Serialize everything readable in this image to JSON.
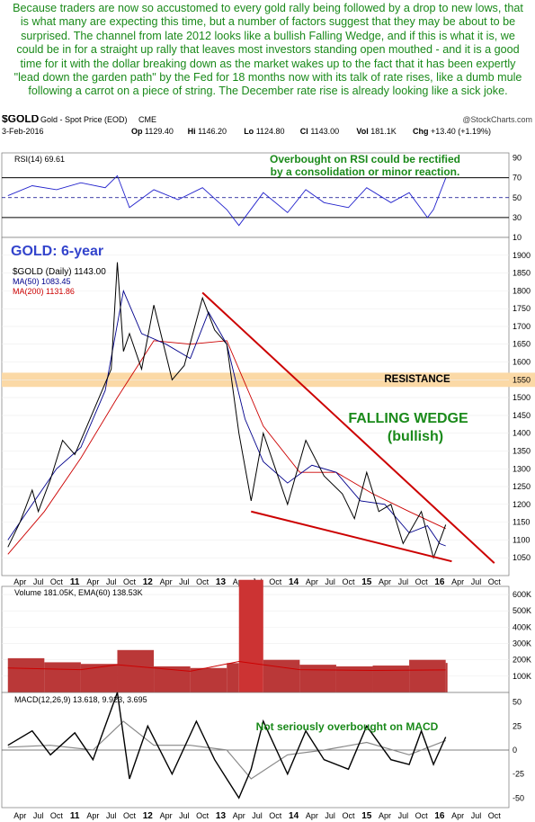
{
  "intro_text": "Because traders are now so accustomed to every gold rally being followed by a drop to new lows, that is what many are expecting this time, but a number of factors suggest that they may be about to be surprised. The channel from late 2012 looks like a bullish Falling Wedge, and if this is what it is, we could be in for a straight up rally that leaves most investors standing open mouthed - and it is a good time for it with the dollar breaking down as the market wakes up to the fact that it has been expertly \"lead down the garden path\" by the Fed for 18 months now with its talk of rate rises, like a dumb mule following a carrot on a piece of string. The December rate rise is already looking like a sick joke.",
  "header": {
    "symbol": "$GOLD",
    "name": "Gold - Spot Price (EOD)",
    "exchange": "CME",
    "watermark": "@StockCharts.com",
    "date": "3-Feb-2016",
    "quote": [
      {
        "k": "Op",
        "v": "1129.40"
      },
      {
        "k": "Hi",
        "v": "1146.20"
      },
      {
        "k": "Lo",
        "v": "1124.80"
      },
      {
        "k": "Cl",
        "v": "1143.00"
      },
      {
        "k": "Vol",
        "v": "181.1K"
      },
      {
        "k": "Chg",
        "v": "+13.40 (+1.19%)"
      }
    ]
  },
  "colors": {
    "green": "#1a8a1a",
    "navy": "#00008b",
    "red": "#cc0000",
    "price": "#000000",
    "rsi": "#2222cc",
    "resistance": "#fbd9a6",
    "volume": "#b22222",
    "ema": "#cc0000"
  },
  "chart_data": [
    {
      "type": "line",
      "title": "RSI(14) 69.61",
      "ylim": [
        10,
        95
      ],
      "y_ticks": [
        90,
        70,
        50,
        30,
        10
      ],
      "levels": [
        70,
        50,
        30
      ],
      "last_value": 69.61,
      "annotation": "Overbought on RSI could be rectified by a consolidation or minor reaction.",
      "series": [
        {
          "name": "RSI(14)",
          "x": [
            "2010-02",
            "2010-06",
            "2010-10",
            "2011-02",
            "2011-06",
            "2011-08",
            "2011-10",
            "2012-02",
            "2012-06",
            "2012-10",
            "2013-02",
            "2013-04",
            "2013-08",
            "2013-12",
            "2014-03",
            "2014-06",
            "2014-10",
            "2015-01",
            "2015-05",
            "2015-08",
            "2015-11",
            "2015-12",
            "2016-02"
          ],
          "values": [
            52,
            62,
            58,
            65,
            60,
            72,
            40,
            58,
            48,
            60,
            38,
            22,
            55,
            35,
            58,
            45,
            40,
            60,
            45,
            55,
            30,
            38,
            69.61
          ]
        }
      ]
    },
    {
      "type": "line",
      "title": "GOLD: 6-year",
      "legend": [
        "$GOLD (Daily) 1143.00",
        "MA(50) 1083.45",
        "MA(200) 1131.86"
      ],
      "ylim": [
        1000,
        1950
      ],
      "y_ticks": [
        1900,
        1850,
        1800,
        1750,
        1700,
        1650,
        1600,
        1550,
        1500,
        1450,
        1400,
        1350,
        1300,
        1250,
        1200,
        1150,
        1100,
        1050
      ],
      "x_tick_labels": [
        "Apr",
        "Jul",
        "Oct",
        "11",
        "Apr",
        "Jul",
        "Oct",
        "12",
        "Apr",
        "Jul",
        "Oct",
        "13",
        "Apr",
        "Jul",
        "Oct",
        "14",
        "Apr",
        "Jul",
        "Oct",
        "15",
        "Apr",
        "Jul",
        "Oct",
        "16",
        "Apr",
        "Jul",
        "Oct"
      ],
      "annotations": [
        "RESISTANCE",
        "FALLING WEDGE",
        "(bullish)"
      ],
      "resistance_zone": [
        1530,
        1570
      ],
      "wedge_upper": {
        "x": [
          "2012-10",
          "2016-10"
        ],
        "y": [
          1795,
          1035
        ]
      },
      "wedge_lower": {
        "x": [
          "2013-06",
          "2016-03"
        ],
        "y": [
          1180,
          1040
        ]
      },
      "series": [
        {
          "name": "$GOLD (Daily)",
          "x": [
            "2010-02",
            "2010-04",
            "2010-06",
            "2010-07",
            "2010-09",
            "2010-11",
            "2011-01",
            "2011-03",
            "2011-05",
            "2011-07",
            "2011-08",
            "2011-09",
            "2011-10",
            "2011-12",
            "2012-02",
            "2012-05",
            "2012-07",
            "2012-10",
            "2012-12",
            "2013-02",
            "2013-04",
            "2013-06",
            "2013-08",
            "2013-10",
            "2013-12",
            "2014-03",
            "2014-06",
            "2014-09",
            "2014-11",
            "2015-01",
            "2015-03",
            "2015-05",
            "2015-07",
            "2015-10",
            "2015-12",
            "2016-02"
          ],
          "values": [
            1080,
            1150,
            1240,
            1180,
            1270,
            1380,
            1340,
            1420,
            1500,
            1580,
            1880,
            1630,
            1680,
            1580,
            1760,
            1550,
            1590,
            1780,
            1690,
            1650,
            1400,
            1210,
            1400,
            1300,
            1200,
            1380,
            1280,
            1230,
            1160,
            1290,
            1180,
            1200,
            1090,
            1180,
            1050,
            1143
          ]
        },
        {
          "name": "MA(50)",
          "x": [
            "2010-02",
            "2010-06",
            "2010-10",
            "2011-02",
            "2011-06",
            "2011-09",
            "2011-12",
            "2012-04",
            "2012-08",
            "2012-11",
            "2013-02",
            "2013-05",
            "2013-08",
            "2013-12",
            "2014-04",
            "2014-08",
            "2014-12",
            "2015-04",
            "2015-08",
            "2015-11",
            "2016-01",
            "2016-02"
          ],
          "values": [
            1100,
            1200,
            1300,
            1360,
            1520,
            1800,
            1680,
            1650,
            1610,
            1740,
            1650,
            1440,
            1320,
            1260,
            1310,
            1290,
            1210,
            1200,
            1120,
            1140,
            1090,
            1083.45
          ]
        },
        {
          "name": "MA(200)",
          "x": [
            "2010-02",
            "2010-08",
            "2011-02",
            "2011-08",
            "2012-02",
            "2012-08",
            "2013-02",
            "2013-08",
            "2014-02",
            "2014-08",
            "2015-02",
            "2015-08",
            "2016-02"
          ],
          "values": [
            1060,
            1180,
            1330,
            1500,
            1660,
            1650,
            1660,
            1420,
            1290,
            1290,
            1230,
            1180,
            1131.86
          ]
        }
      ]
    },
    {
      "type": "bar",
      "title": "Volume 181.05K, EMA(60) 138.53K",
      "ylim": [
        0,
        650000
      ],
      "y_ticks": [
        "600K",
        "500K",
        "400K",
        "300K",
        "200K",
        "100K"
      ],
      "series": [
        {
          "name": "Volume",
          "x": [
            "2010-02",
            "2010-08",
            "2011-02",
            "2011-08",
            "2012-02",
            "2012-08",
            "2013-02",
            "2013-04",
            "2013-08",
            "2014-02",
            "2014-08",
            "2015-02",
            "2015-08",
            "2016-02"
          ],
          "values": [
            210000,
            185000,
            175000,
            260000,
            160000,
            150000,
            180000,
            690000,
            200000,
            170000,
            160000,
            165000,
            200000,
            181050
          ]
        },
        {
          "name": "EMA(60)",
          "x": [
            "2010-02",
            "2011-02",
            "2011-08",
            "2012-08",
            "2013-04",
            "2014-02",
            "2015-02",
            "2016-02"
          ],
          "values": [
            150000,
            140000,
            170000,
            130000,
            190000,
            140000,
            135000,
            138530
          ]
        }
      ]
    },
    {
      "type": "line",
      "title": "MACD(12,26,9) 13.618, 9.923, 3.695",
      "ylim": [
        -60,
        60
      ],
      "y_ticks": [
        50,
        25,
        0,
        -25,
        -50
      ],
      "annotation": "Not seriously overbought on MACD",
      "x_tick_labels": [
        "Apr",
        "Jul",
        "Oct",
        "11",
        "Apr",
        "Jul",
        "Oct",
        "12",
        "Apr",
        "Jul",
        "Oct",
        "13",
        "Apr",
        "Jul",
        "Oct",
        "14",
        "Apr",
        "Jul",
        "Oct",
        "15",
        "Apr",
        "Jul",
        "Oct",
        "16",
        "Apr",
        "Jul",
        "Oct"
      ],
      "series": [
        {
          "name": "MACD",
          "x": [
            "2010-02",
            "2010-06",
            "2010-09",
            "2011-01",
            "2011-04",
            "2011-08",
            "2011-10",
            "2012-01",
            "2012-05",
            "2012-09",
            "2012-12",
            "2013-04",
            "2013-06",
            "2013-08",
            "2013-12",
            "2014-03",
            "2014-06",
            "2014-10",
            "2015-01",
            "2015-05",
            "2015-08",
            "2015-10",
            "2015-12",
            "2016-02"
          ],
          "values": [
            5,
            20,
            -5,
            18,
            -10,
            60,
            -30,
            25,
            -25,
            30,
            -10,
            -50,
            -20,
            30,
            -25,
            20,
            -10,
            -20,
            25,
            -10,
            -15,
            20,
            -15,
            13.618
          ]
        },
        {
          "name": "Signal",
          "x": [
            "2010-02",
            "2010-09",
            "2011-04",
            "2011-09",
            "2012-02",
            "2012-08",
            "2013-02",
            "2013-06",
            "2013-12",
            "2014-06",
            "2015-01",
            "2015-08",
            "2016-02"
          ],
          "values": [
            3,
            5,
            0,
            30,
            5,
            5,
            0,
            -30,
            -5,
            0,
            8,
            -5,
            9.923
          ]
        }
      ]
    }
  ]
}
